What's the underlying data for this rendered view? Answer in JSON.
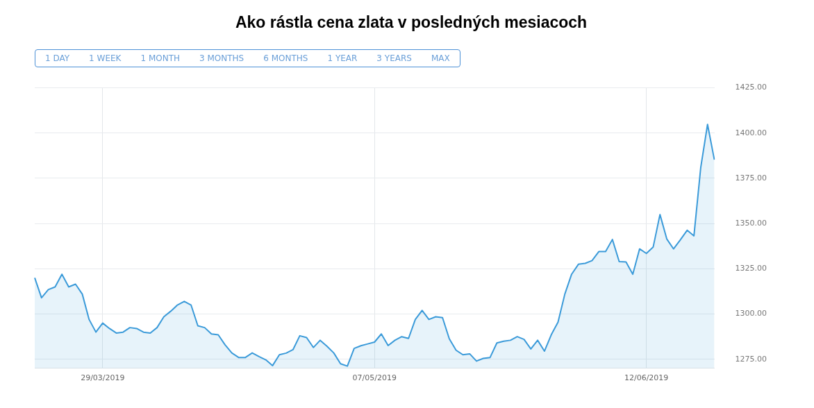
{
  "chart_data": {
    "type": "area",
    "title": "Ako rástla cena zlata v posledných mesiacoch",
    "annotations": [
      "1 DAY",
      "1 WEEK",
      "1 MONTH",
      "3 MONTHS",
      "6 MONTHS",
      "1 YEAR",
      "3 YEARS",
      "MAX"
    ],
    "categories": [
      null,
      null,
      null,
      null,
      null,
      null,
      null,
      null,
      null,
      null,
      "29/03/2019",
      null,
      null,
      null,
      null,
      null,
      null,
      null,
      null,
      null,
      null,
      null,
      null,
      null,
      null,
      null,
      null,
      null,
      null,
      null,
      null,
      null,
      null,
      null,
      null,
      null,
      null,
      null,
      null,
      null,
      null,
      null,
      null,
      null,
      null,
      null,
      null,
      null,
      null,
      null,
      "07/05/2019",
      null,
      null,
      null,
      null,
      null,
      null,
      null,
      null,
      null,
      null,
      null,
      null,
      null,
      null,
      null,
      null,
      null,
      null,
      null,
      null,
      null,
      null,
      null,
      null,
      null,
      null,
      null,
      null,
      null,
      null,
      null,
      null,
      null,
      null,
      null,
      null,
      null,
      null,
      null,
      "12/06/2019",
      null,
      null,
      null,
      null,
      null,
      null,
      null,
      null,
      null,
      null
    ],
    "series": [
      {
        "color": "#3a9ad9",
        "values": [
          1320,
          1309,
          1313.5,
          1315,
          1322,
          1315,
          1316.5,
          1311,
          1297,
          1290,
          1295,
          1292,
          1289.5,
          1290,
          1292.5,
          1292,
          1290,
          1289.5,
          1292.5,
          1298.5,
          1301.5,
          1305,
          1307,
          1305,
          1293.5,
          1292.5,
          1289,
          1288.5,
          1283,
          1278.5,
          1276,
          1276,
          1278.5,
          1276.5,
          1274.7,
          1271.5,
          1277.5,
          1278.4,
          1280.3,
          1288,
          1287,
          1281.5,
          1285.5,
          1282.2,
          1278.5,
          1272.5,
          1271.2,
          1281,
          1282.5,
          1283.5,
          1284.5,
          1289,
          1282.6,
          1285.5,
          1287.5,
          1286.5,
          1297,
          1302,
          1297,
          1298.5,
          1298,
          1286.3,
          1280,
          1277.5,
          1278,
          1274,
          1275.5,
          1276,
          1284,
          1285,
          1285.5,
          1287.5,
          1286,
          1280.7,
          1285.5,
          1279.5,
          1288.5,
          1295.5,
          1311,
          1322,
          1327.5,
          1328,
          1329.5,
          1334.5,
          1334.5,
          1341.2,
          1329,
          1328.8,
          1322,
          1336,
          1333.5,
          1337,
          1355,
          1341.5,
          1336,
          1341,
          1346.3,
          1343.2,
          1381,
          1404.8,
          1385.3
        ]
      }
    ],
    "ylim": [
      1270,
      1425
    ],
    "yticks": [
      {
        "value": 1275,
        "label": "1275.00"
      },
      {
        "value": 1300,
        "label": "1300.00"
      },
      {
        "value": 1325,
        "label": "1325.00"
      },
      {
        "value": 1350,
        "label": "1350.00"
      },
      {
        "value": 1375,
        "label": "1375.00"
      },
      {
        "value": 1400,
        "label": "1400.00"
      },
      {
        "value": 1425,
        "label": "1425.00"
      }
    ],
    "grid": true
  }
}
